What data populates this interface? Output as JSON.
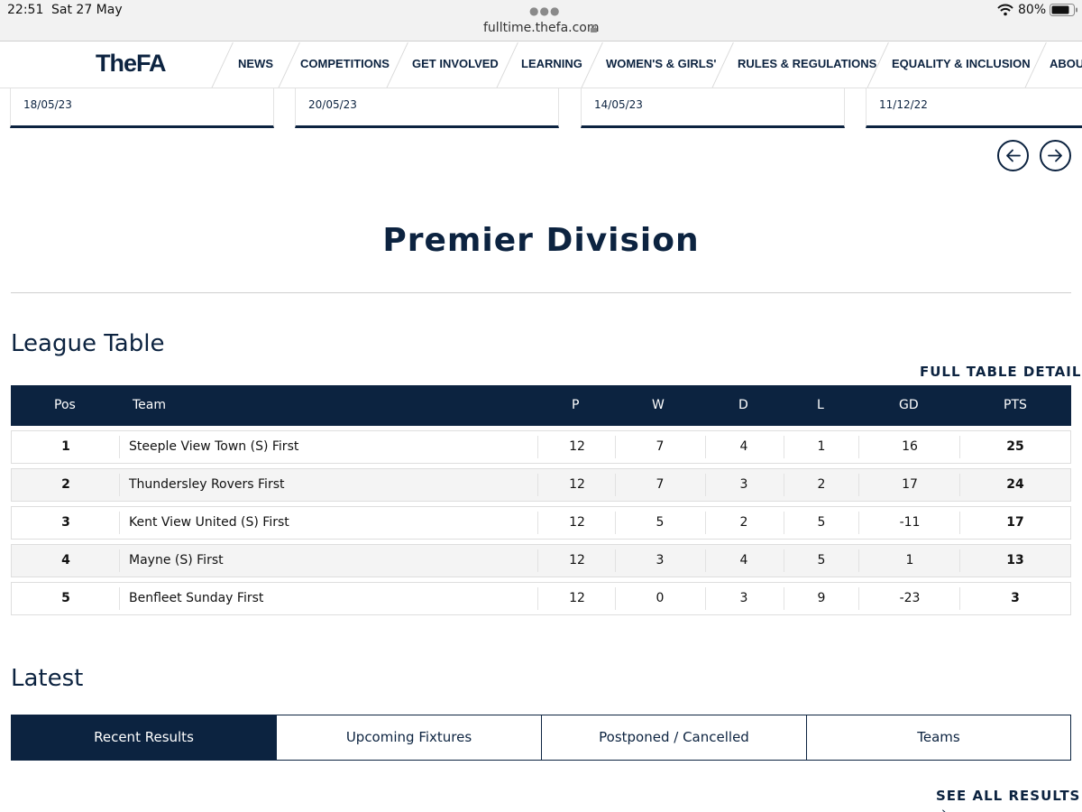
{
  "status_bar": {
    "time": "22:51",
    "date": "Sat 27 May",
    "url": "fulltime.thefa.com",
    "battery": "80%"
  },
  "header": {
    "logo": "TheFA",
    "nav": [
      "NEWS",
      "COMPETITIONS",
      "GET INVOLVED",
      "LEARNING",
      "WOMEN'S & GIRLS'",
      "RULES & REGULATIONS",
      "EQUALITY & INCLUSION",
      "ABOU"
    ]
  },
  "news_cards": [
    {
      "date": "18/05/23"
    },
    {
      "date": "20/05/23"
    },
    {
      "date": "14/05/23"
    },
    {
      "date": "11/12/22"
    }
  ],
  "page_title": "Premier Division",
  "league_table": {
    "heading": "League Table",
    "full_detail_link": "FULL TABLE DETAIL",
    "columns": [
      "Pos",
      "Team",
      "P",
      "W",
      "D",
      "L",
      "GD",
      "PTS"
    ],
    "rows": [
      {
        "pos": "1",
        "team": "Steeple View Town (S) First",
        "p": "12",
        "w": "7",
        "d": "4",
        "l": "1",
        "gd": "16",
        "pts": "25"
      },
      {
        "pos": "2",
        "team": "Thundersley Rovers First",
        "p": "12",
        "w": "7",
        "d": "3",
        "l": "2",
        "gd": "17",
        "pts": "24"
      },
      {
        "pos": "3",
        "team": "Kent View United (S) First",
        "p": "12",
        "w": "5",
        "d": "2",
        "l": "5",
        "gd": "-11",
        "pts": "17"
      },
      {
        "pos": "4",
        "team": "Mayne (S) First",
        "p": "12",
        "w": "3",
        "d": "4",
        "l": "5",
        "gd": "1",
        "pts": "13"
      },
      {
        "pos": "5",
        "team": "Benfleet Sunday First",
        "p": "12",
        "w": "0",
        "d": "3",
        "l": "9",
        "gd": "-23",
        "pts": "3"
      }
    ]
  },
  "latest": {
    "heading": "Latest",
    "tabs": [
      "Recent Results",
      "Upcoming Fixtures",
      "Postponed / Cancelled",
      "Teams"
    ],
    "active_tab": "Recent Results",
    "see_all_link": "SEE ALL RESULTS"
  },
  "colors": {
    "brand_navy": "#0c2340",
    "row_alt": "#f4f4f4"
  }
}
